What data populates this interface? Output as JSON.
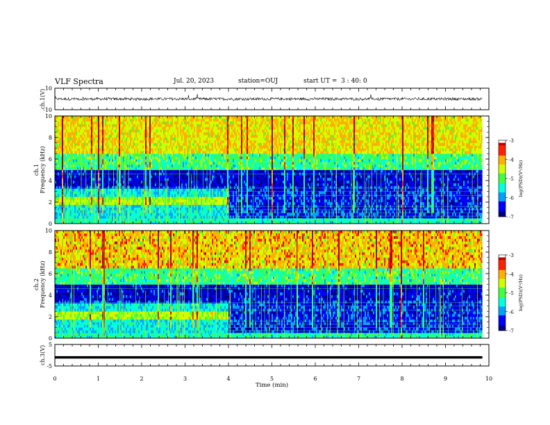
{
  "header": {
    "title": "VLF Spectra",
    "date": "Jul. 20, 2023",
    "station": "station=OUJ",
    "start": "start UT =  3 : 40: 0"
  },
  "colors": {
    "colormap": [
      "#000080",
      "#0000ff",
      "#00a0ff",
      "#00ffe0",
      "#40ff40",
      "#d0ff00",
      "#ffb000",
      "#ff2000",
      "#c00000"
    ],
    "trace": "#000000"
  },
  "chart_data": [
    {
      "type": "line",
      "panel": "ch1-waveform",
      "ylabel": "ch.1(V)",
      "ytick_labels": [
        "10",
        "-10"
      ],
      "ylim": [
        -10,
        10
      ],
      "xlim": [
        0,
        10
      ],
      "description_values": {
        "baseline_v": 0,
        "spread_v": 2.5
      }
    },
    {
      "type": "heatmap",
      "panel": "ch1-spectrogram",
      "ylabel": "ch.1\nFrequency (kHz)",
      "ytick_labels": [
        "0",
        "2",
        "4",
        "6",
        "8",
        "10"
      ],
      "ylim": [
        0,
        10
      ],
      "xlim": [
        0,
        9.85
      ],
      "step_time_min": 4.0,
      "colorbar": {
        "label": "log(PSD)(V²/Hz)",
        "tick_labels": [
          "-3",
          "-4",
          "-5",
          "-6",
          "-7"
        ],
        "range": [
          -7,
          -3
        ]
      }
    },
    {
      "type": "heatmap",
      "panel": "ch2-spectrogram",
      "ylabel": "ch.2\nFrequency (kHz)",
      "ytick_labels": [
        "0",
        "2",
        "4",
        "6",
        "8",
        "10"
      ],
      "ylim": [
        0,
        10
      ],
      "xlim": [
        0,
        9.85
      ],
      "step_time_min": 4.0,
      "colorbar": {
        "label": "log(PSD)(V²/Hz)",
        "tick_labels": [
          "-3",
          "-4",
          "-5",
          "-6",
          "-7"
        ],
        "range": [
          -7,
          -3
        ]
      }
    },
    {
      "type": "line",
      "panel": "ch3-waveform",
      "ylabel": "ch.3(V)",
      "ytick_labels": [
        "5",
        "-5"
      ],
      "ylim": [
        -5,
        5
      ],
      "xlim": [
        0,
        10
      ],
      "series": [
        {
          "x": [
            0,
            9.85
          ],
          "y": [
            -1,
            -1
          ]
        }
      ]
    }
  ],
  "xaxis": {
    "label": "Time (min)",
    "tick_labels": [
      "0",
      "1",
      "2",
      "3",
      "4",
      "5",
      "6",
      "7",
      "8",
      "9",
      "10"
    ],
    "range": [
      0,
      10
    ]
  }
}
